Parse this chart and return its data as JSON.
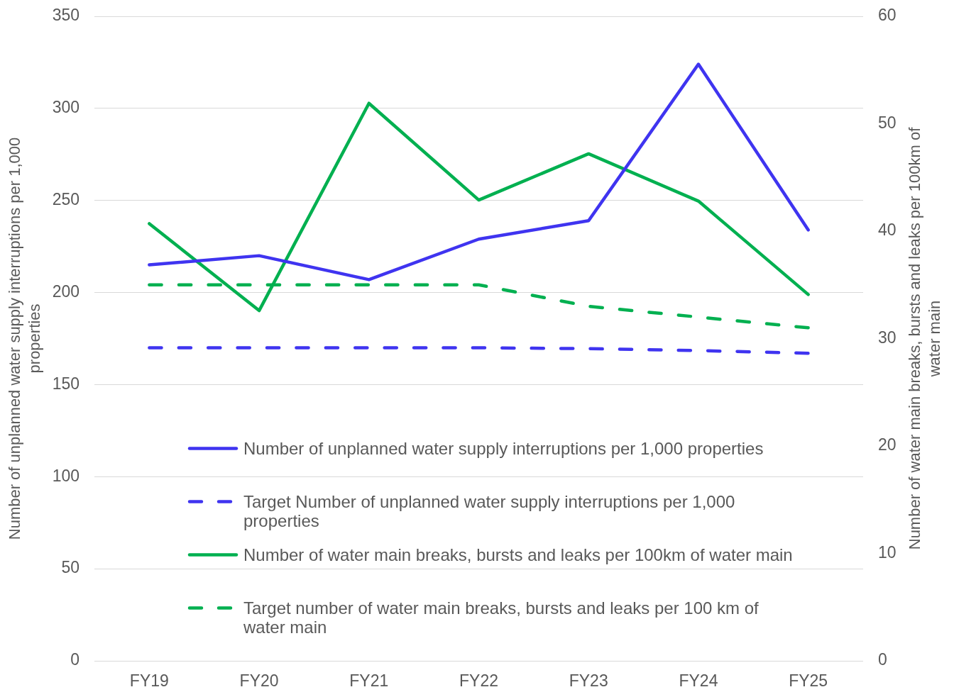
{
  "chart_data": {
    "type": "line",
    "categories": [
      "FY19",
      "FY20",
      "FY21",
      "FY22",
      "FY23",
      "FY24",
      "FY25"
    ],
    "series": [
      {
        "name": "Number of unplanned water supply interruptions per 1,000 properties",
        "color": "#3f34f0",
        "values": [
          215,
          220,
          207,
          229,
          239,
          324,
          234
        ]
      },
      {
        "name": "Target Number of unplanned water supply interruptions per 1,000 properties",
        "color": "#3f34f0",
        "line_style": "dashed",
        "values": [
          170,
          170,
          170,
          170,
          169.5,
          168.5,
          167
        ]
      },
      {
        "name": "Number of water main breaks, bursts and leaks per 100km of water main",
        "color": "#00b050",
        "axis": "y2",
        "values": [
          40.7,
          32.6,
          51.9,
          42.9,
          47.2,
          42.8,
          34.1
        ]
      },
      {
        "name": "Target number of water main breaks, bursts and leaks per 100 km of water main",
        "color": "#00b050",
        "axis": "y2",
        "line_style": "dashed",
        "values": [
          35,
          35,
          35,
          35,
          33,
          32,
          31
        ]
      }
    ],
    "ylabel": "Number of unplanned water supply interruptions per 1,000 properties",
    "y2label": "Number of water main breaks, bursts and leaks per 100km of water main",
    "ylim": [
      0,
      350
    ],
    "yticks": [
      0,
      50,
      100,
      150,
      200,
      250,
      300,
      350
    ],
    "y2lim": [
      0,
      60
    ],
    "y2ticks": [
      0,
      10,
      20,
      30,
      40,
      50,
      60
    ],
    "grid": "y",
    "legend": "bottom"
  }
}
